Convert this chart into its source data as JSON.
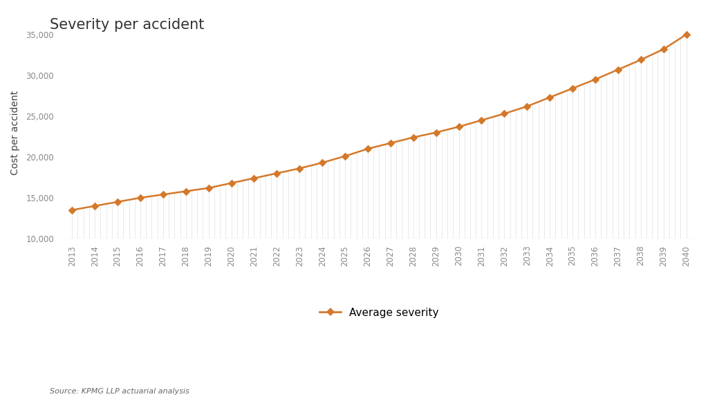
{
  "title": "Severity per accident",
  "ylabel": "Cost per accident",
  "source": "Source: KPMG LLP actuarial analysis",
  "legend_label": "Average severity",
  "line_color": "#D4782A",
  "fill_color": "#F0F0F0",
  "vline_color": "#D8D8D8",
  "marker_color": "#D4782A",
  "background_color": "#FFFFFF",
  "years": [
    2013,
    2014,
    2015,
    2016,
    2017,
    2018,
    2019,
    2020,
    2021,
    2022,
    2023,
    2024,
    2025,
    2026,
    2027,
    2028,
    2029,
    2030,
    2031,
    2032,
    2033,
    2034,
    2035,
    2036,
    2037,
    2038,
    2039,
    2040
  ],
  "values": [
    13500,
    14000,
    14500,
    15000,
    15400,
    15800,
    16200,
    16800,
    17400,
    18000,
    18600,
    19300,
    20100,
    21000,
    21700,
    22400,
    23000,
    23700,
    24500,
    25300,
    26200,
    27300,
    28400,
    29500,
    30700,
    31900,
    33200,
    35000
  ],
  "ylim": [
    10000,
    36000
  ],
  "yticks": [
    10000,
    15000,
    20000,
    25000,
    30000,
    35000
  ],
  "title_fontsize": 15,
  "axis_label_fontsize": 10,
  "tick_fontsize": 8.5,
  "source_fontsize": 8,
  "legend_fontsize": 11,
  "title_color": "#333333",
  "tick_color": "#888888",
  "axis_label_color": "#444444",
  "source_color": "#666666",
  "bottom_line_color": "#AAAAAA"
}
